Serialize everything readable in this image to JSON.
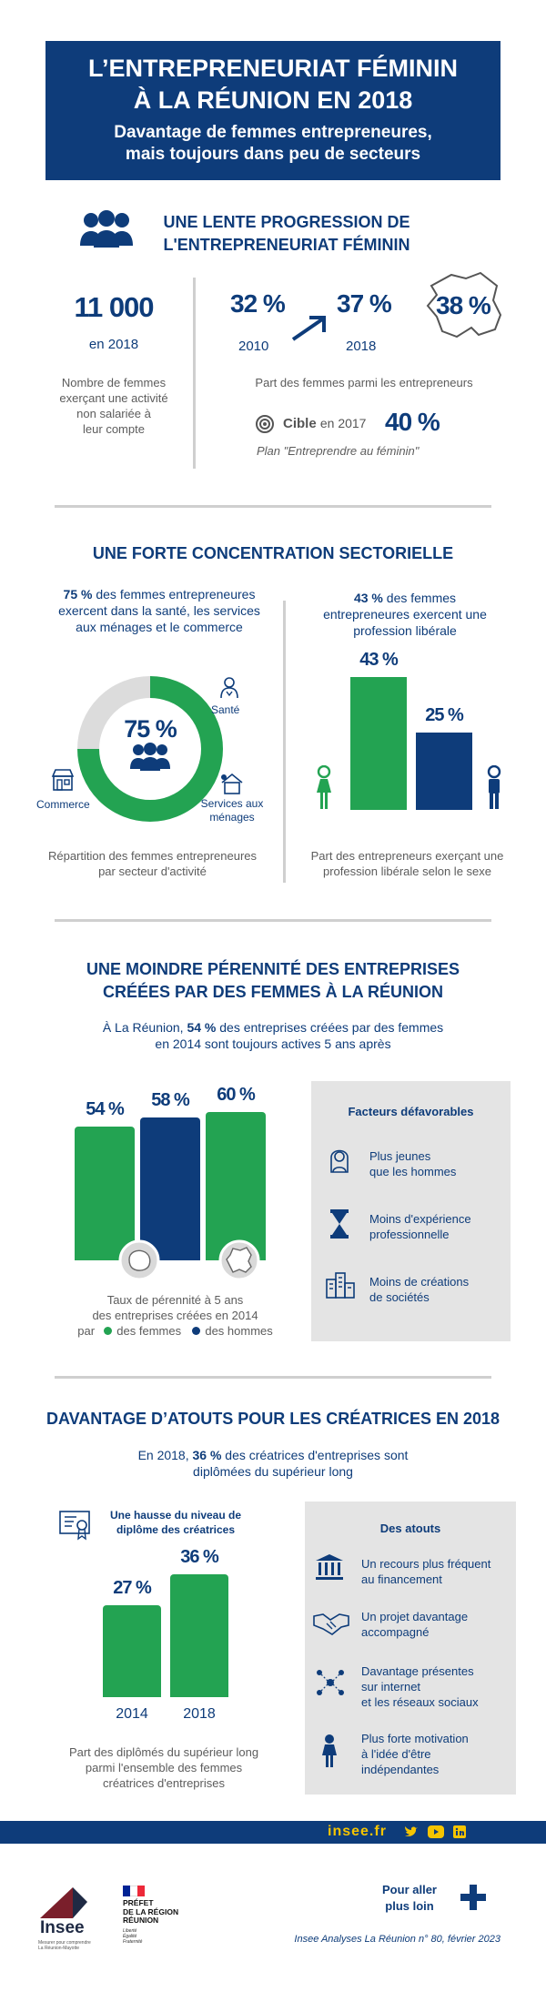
{
  "header": {
    "title_line1": "L’ENTREPRENEURIAT FÉMININ",
    "title_line2": "À LA RÉUNION EN 2018",
    "subtitle_line1": "Davantage de femmes entrepreneures,",
    "subtitle_line2": "mais toujours dans peu de secteurs"
  },
  "section1": {
    "title_line1": "UNE LENTE PROGRESSION DE",
    "title_line2": "L'ENTREPRENEURIAT FÉMININ",
    "count_value": "11 000",
    "count_year": "en 2018",
    "count_desc": [
      "Nombre de femmes",
      "exerçant une activité",
      "non salariée à",
      "leur compte"
    ],
    "share_2010": "32 %",
    "share_2010_year": "2010",
    "share_2018": "37 %",
    "share_2018_year": "2018",
    "share_france": "38 %",
    "share_desc": "Part des femmes parmi les entrepreneurs",
    "target_label": "Cible",
    "target_year": "en 2017",
    "target_value": "40 %",
    "target_plan": "Plan \"Entreprendre au féminin\""
  },
  "section2": {
    "title": "UNE FORTE CONCENTRATION SECTORIELLE",
    "left_intro_bold": "75 %",
    "left_intro_line1": " des femmes entrepreneures",
    "left_intro_line2": "exercent dans la santé, les services",
    "left_intro_line3": "aux ménages et le commerce",
    "donut_label": "75 %",
    "sector_sante": "Santé",
    "sector_commerce": "Commerce",
    "sector_services_1": "Services aux",
    "sector_services_2": "ménages",
    "left_caption_1": "Répartition des femmes entrepreneures",
    "left_caption_2": "par secteur d'activité",
    "right_intro_bold": "43 %",
    "right_intro_line1": " des femmes",
    "right_intro_line2": "entrepreneures exercent une",
    "right_intro_line3": "profession libérale",
    "right_caption_1": "Part des entrepreneurs exerçant une",
    "right_caption_2": "profession libérale selon le sexe"
  },
  "section3": {
    "title_line1": "UNE MOINDRE PÉRENNITÉ DES ENTREPRISES",
    "title_line2": "CRÉÉES PAR DES FEMMES À LA RÉUNION",
    "intro_pre": "À La Réunion, ",
    "intro_bold": "54 %",
    "intro_post": " des entreprises créées par des femmes",
    "intro_line2": "en 2014 sont toujours actives 5 ans après",
    "caption_1": "Taux de pérennité à 5 ans",
    "caption_2": "des entreprises créées en 2014",
    "legend_par": "par",
    "legend_f": "des femmes",
    "legend_h": "des hommes",
    "box_title": "Facteurs défavorables",
    "factors": [
      {
        "line1": "Plus jeunes",
        "line2": "que les hommes"
      },
      {
        "line1": "Moins d'expérience",
        "line2": "professionnelle"
      },
      {
        "line1": "Moins de créations",
        "line2": "de sociétés"
      }
    ]
  },
  "section4": {
    "title": "DAVANTAGE D’ATOUTS POUR LES CRÉATRICES EN 2018",
    "intro_pre": "En 2018, ",
    "intro_bold": "36 %",
    "intro_post": " des créatrices d'entreprises sont",
    "intro_line2": "diplômées du supérieur long",
    "chart_title_1": "Une hausse du niveau de",
    "chart_title_2": "diplôme des créatrices",
    "caption_1": "Part des diplômés du supérieur long",
    "caption_2": "parmi l'ensemble des femmes",
    "caption_3": "créatrices d'entreprises",
    "box_title": "Des atouts",
    "atouts": [
      {
        "lines": [
          "Un recours plus fréquent",
          "au financement"
        ]
      },
      {
        "lines": [
          "Un projet davantage",
          "accompagné"
        ]
      },
      {
        "lines": [
          "Davantage présentes",
          "sur internet",
          "et les réseaux sociaux"
        ]
      },
      {
        "lines": [
          "Plus forte motivation",
          "à l'idée d'être",
          "indépendantes"
        ]
      }
    ]
  },
  "footer": {
    "site": "insee.fr",
    "insee_logo": "Insee",
    "insee_tagline": "Mesurer pour comprendre",
    "insee_region": "La Réunion-Mayotte",
    "prefet_line1": "PRÉFET",
    "prefet_line2": "DE LA RÉGION",
    "prefet_line3": "RÉUNION",
    "devise_1": "Liberté",
    "devise_2": "Égalité",
    "devise_3": "Fraternité",
    "more_1": "Pour aller",
    "more_2": "plus loin",
    "reference": "Insee Analyses La Réunion n° 80, février 2023"
  },
  "colors": {
    "navy": "#0e3c7a",
    "green": "#23a352",
    "grey": "#e4e4e4",
    "light": "#dcdcdc"
  },
  "chart_data": [
    {
      "type": "pie",
      "categories": [
        "Santé, services aux ménages et commerce",
        "Autres secteurs"
      ],
      "values": [
        75,
        25
      ],
      "title": ""
    },
    {
      "type": "bar",
      "categories": [
        "Femmes",
        "Hommes"
      ],
      "values": [
        43,
        25
      ],
      "labels": [
        "43 %",
        "25 %"
      ],
      "ylim": [
        0,
        50
      ]
    },
    {
      "type": "bar",
      "categories": [
        "Femmes (La Réunion)",
        "Hommes (La Réunion)",
        "Femmes (France)"
      ],
      "values": [
        54,
        58,
        60
      ],
      "labels": [
        "54 %",
        "58 %",
        "60 %"
      ],
      "ylim": [
        0,
        70
      ]
    },
    {
      "type": "bar",
      "categories": [
        "2014",
        "2018"
      ],
      "values": [
        27,
        36
      ],
      "labels": [
        "27 %",
        "36 %"
      ],
      "ylim": [
        0,
        40
      ]
    }
  ]
}
